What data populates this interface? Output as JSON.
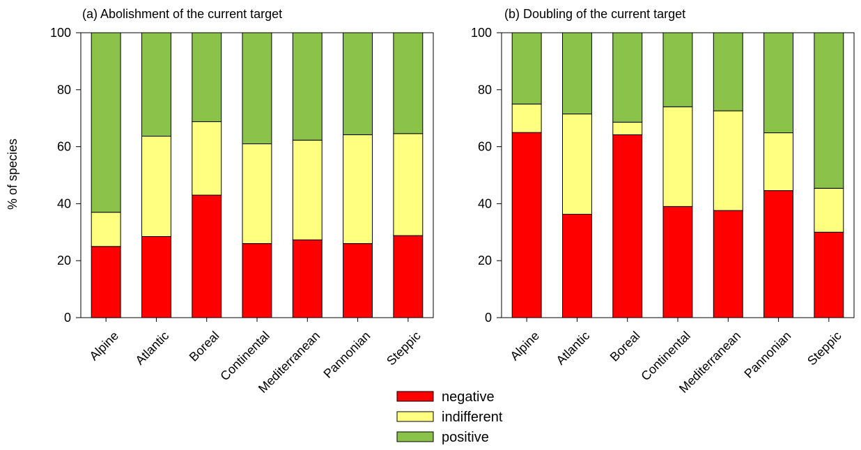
{
  "chart_data": [
    {
      "type": "bar",
      "stacked": true,
      "title": "(a) Abolishment of the current target",
      "xlabel": "",
      "ylabel": "% of species",
      "ylim": [
        0,
        100
      ],
      "yticks": [
        0,
        20,
        40,
        60,
        80,
        100
      ],
      "grid": false,
      "categories": [
        "Alpine",
        "Atlantic",
        "Boreal",
        "Continental",
        "Mediterranean",
        "Pannonian",
        "Steppic"
      ],
      "series": [
        {
          "name": "negative",
          "color": "#ff0000",
          "values": [
            25,
            28.5,
            43,
            26,
            27.3,
            26,
            28.8
          ]
        },
        {
          "name": "indifferent",
          "color": "#ffff80",
          "values": [
            12,
            35.2,
            25.8,
            35,
            35,
            38.2,
            35.8
          ]
        },
        {
          "name": "positive",
          "color": "#8bc34a",
          "values": [
            63,
            36.3,
            31.2,
            39,
            37.7,
            35.8,
            35.4
          ]
        }
      ]
    },
    {
      "type": "bar",
      "stacked": true,
      "title": "(b) Doubling of the current target",
      "xlabel": "",
      "ylabel": "",
      "ylim": [
        0,
        100
      ],
      "yticks": [
        0,
        20,
        40,
        60,
        80,
        100
      ],
      "grid": false,
      "categories": [
        "Alpine",
        "Atlantic",
        "Boreal",
        "Continental",
        "Mediterranean",
        "Pannonian",
        "Steppic"
      ],
      "series": [
        {
          "name": "negative",
          "color": "#ff0000",
          "values": [
            65,
            36.3,
            64.2,
            39,
            37.6,
            44.6,
            30
          ]
        },
        {
          "name": "indifferent",
          "color": "#ffff80",
          "values": [
            10,
            35.2,
            4.4,
            35,
            35,
            20.3,
            15.4
          ]
        },
        {
          "name": "positive",
          "color": "#8bc34a",
          "values": [
            25,
            28.5,
            31.4,
            26,
            27.4,
            35.1,
            54.6
          ]
        }
      ]
    }
  ],
  "legend": {
    "placement": "bottom-center",
    "items": [
      {
        "label": "negative",
        "color": "#ff0000"
      },
      {
        "label": "indifferent",
        "color": "#ffff80"
      },
      {
        "label": "positive",
        "color": "#8bc34a"
      }
    ]
  }
}
